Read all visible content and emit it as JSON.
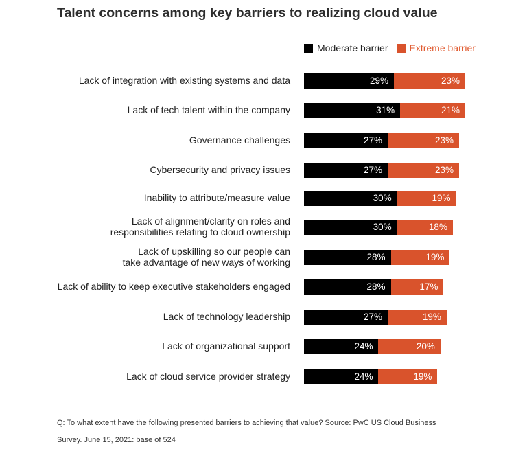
{
  "title": "Talent concerns among key barriers to realizing cloud value",
  "legend": {
    "moderate": "Moderate barrier",
    "extreme": "Extreme barrier"
  },
  "colors": {
    "moderate": "#000000",
    "extreme": "#d9532c",
    "extreme_text": "#e05a2f"
  },
  "footnote": {
    "line1": "Q: To what extent have the following presented barriers to achieving that value? Source: PwC US Cloud Business",
    "line2": "Survey. June 15, 2021: base of 524"
  },
  "chart_data": {
    "type": "bar",
    "orientation": "horizontal",
    "stacked": true,
    "title": "Talent concerns among key barriers to realizing cloud value",
    "categories": [
      [
        "Lack of integration with existing systems and data"
      ],
      [
        "Lack of tech talent within the company"
      ],
      [
        "Governance challenges"
      ],
      [
        "Cybersecurity and privacy issues"
      ],
      [
        "Inability to attribute/measure value"
      ],
      [
        "Lack of alignment/clarity on roles and",
        "responsibilities relating to cloud ownership"
      ],
      [
        "Lack of upskilling so our people can",
        "take advantage of new ways of working"
      ],
      [
        "Lack of ability to keep executive stakeholders engaged"
      ],
      [
        "Lack of technology leadership"
      ],
      [
        "Lack of organizational support"
      ],
      [
        "Lack of cloud service provider strategy"
      ]
    ],
    "series": [
      {
        "name": "Moderate barrier",
        "values": [
          29,
          31,
          27,
          27,
          30,
          30,
          28,
          28,
          27,
          24,
          24
        ]
      },
      {
        "name": "Extreme barrier",
        "values": [
          23,
          21,
          23,
          23,
          19,
          18,
          19,
          17,
          19,
          20,
          19
        ]
      }
    ],
    "value_suffix": "%",
    "legend_position": "top-right"
  }
}
